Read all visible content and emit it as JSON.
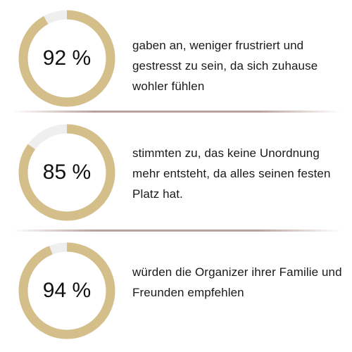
{
  "colors": {
    "ring_fill": "#d4bf8b",
    "ring_track": "#efefef",
    "divider": "#b9a29d"
  },
  "stats": [
    {
      "value_label": "92 %",
      "percent": 92,
      "text": "gaben an, weniger frustriert und gestresst zu sein, da sich zuhause wohler fühlen"
    },
    {
      "value_label": "85 %",
      "percent": 85,
      "text": "stimmten zu, das keine Unordnung mehr entsteht, da alles seinen festen Platz hat."
    },
    {
      "value_label": "94 %",
      "percent": 94,
      "text": "würden die Organizer ihrer Familie und Freunden empfehlen"
    }
  ]
}
